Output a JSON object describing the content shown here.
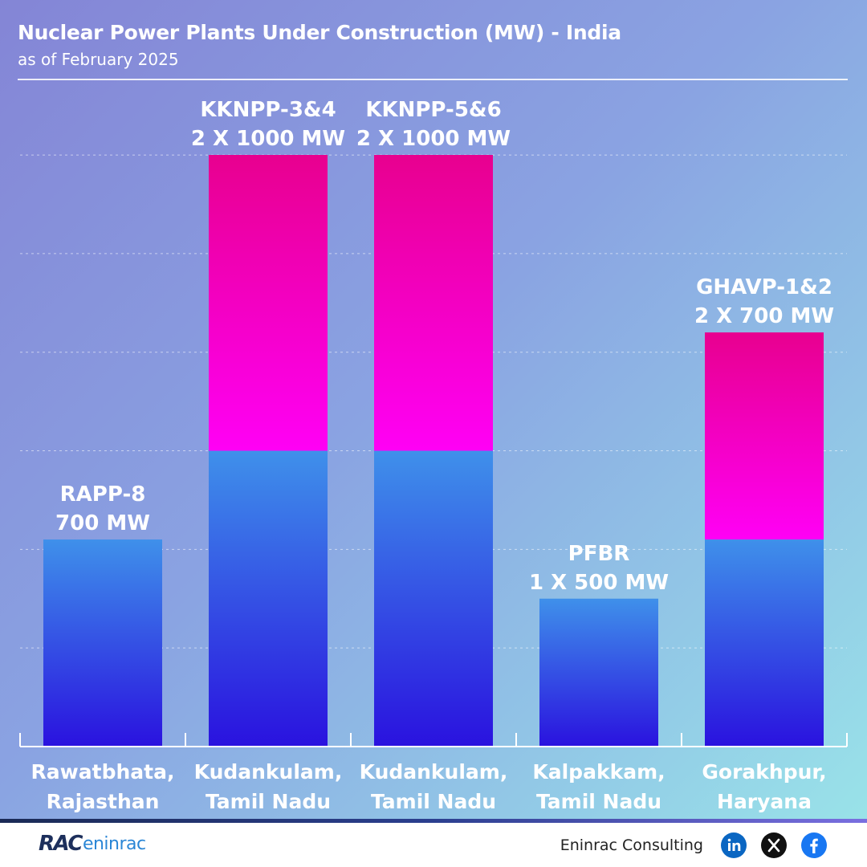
{
  "chart_data": {
    "type": "bar",
    "stacked": true,
    "title": "Nuclear Power Plants Under Construction (MW) - India",
    "subtitle": "as of February 2025",
    "categories": [
      [
        "Rawatbhata,",
        "Rajasthan"
      ],
      [
        "Kudankulam,",
        "Tamil Nadu"
      ],
      [
        "Kudankulam,",
        "Tamil Nadu"
      ],
      [
        "Kalpakkam,",
        "Tamil Nadu"
      ],
      [
        "Gorakhpur,",
        "Haryana"
      ]
    ],
    "annotations": [
      [
        "RAPP-8",
        "700 MW"
      ],
      [
        "KKNPP-3&4",
        "2 X 1000 MW"
      ],
      [
        "KKNPP-5&6",
        "2 X 1000 MW"
      ],
      [
        "PFBR",
        "1 X 500 MW"
      ],
      [
        "GHAVP-1&2",
        "2 X 700 MW"
      ]
    ],
    "series": [
      {
        "values": [
          700,
          1000,
          1000,
          500,
          700
        ],
        "color": "#2a12df",
        "color_top": "#3f90ea"
      },
      {
        "values": [
          0,
          1000,
          1000,
          0,
          700
        ],
        "color": "#ff00f5",
        "color_top": "#e8008f"
      }
    ],
    "ylim": [
      0,
      2000
    ],
    "grid": true,
    "gridline_step": 333.3,
    "show_y_axis_labels": false
  },
  "footer": {
    "logo_rac": "RAC",
    "logo_eninrac": "eninrac",
    "company": "Eninrac Consulting",
    "social_icons": [
      "linkedin-icon",
      "x-icon",
      "facebook-icon"
    ]
  }
}
